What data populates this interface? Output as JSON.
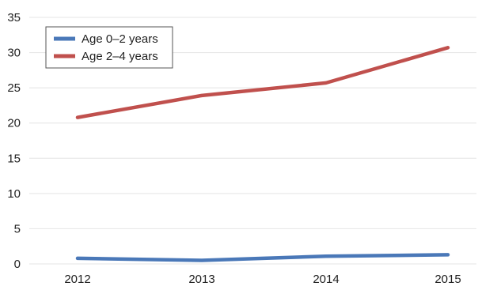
{
  "chart_data": {
    "type": "line",
    "title": "",
    "xlabel": "",
    "ylabel": "",
    "categories": [
      "2012",
      "2013",
      "2014",
      "2015"
    ],
    "ylim": [
      0,
      35
    ],
    "yticks": [
      0,
      5,
      10,
      15,
      20,
      25,
      30,
      35
    ],
    "grid": "horizontal",
    "legend_position": "top-left",
    "series": [
      {
        "name": "Age 0–2 years",
        "color": "#4a78b8",
        "values": [
          0.8,
          0.5,
          1.1,
          1.3
        ]
      },
      {
        "name": "Age 2–4 years",
        "color": "#c0504d",
        "values": [
          20.8,
          23.9,
          25.7,
          30.7
        ]
      }
    ]
  }
}
